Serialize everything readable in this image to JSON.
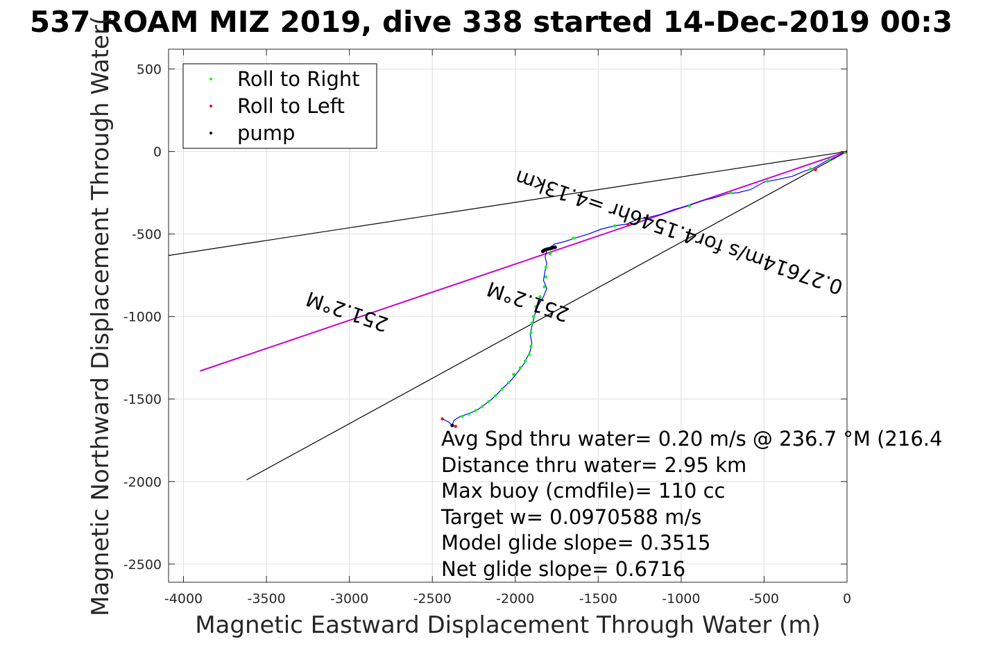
{
  "chart_data": {
    "type": "line",
    "title": "537 ROAM MIZ 2019, dive 338 started 14-Dec-2019 00:3",
    "xlabel": "Magnetic Eastward Displacement Through Water (m)",
    "ylabel": "Magnetic Northward Displacement Through Water(",
    "xlim": [
      -4090,
      0
    ],
    "ylim": [
      -2610,
      620
    ],
    "xticks": [
      -4000,
      -3500,
      -3000,
      -2500,
      -2000,
      -1500,
      -1000,
      -500,
      0
    ],
    "yticks": [
      500,
      0,
      -500,
      -1000,
      -1500,
      -2000,
      -2500
    ],
    "grid": true,
    "legend": {
      "placement": "top-left",
      "entries": [
        {
          "label": "Roll to Right",
          "color": "#00ff00"
        },
        {
          "label": "Roll to Left",
          "color": "#ff0000"
        },
        {
          "label": "pump",
          "color": "#000000"
        }
      ]
    },
    "reference_lines": [
      {
        "color": "#000000",
        "points": [
          [
            0,
            0
          ],
          [
            -4090,
            -630
          ]
        ]
      },
      {
        "color": "#000000",
        "points": [
          [
            0,
            0
          ],
          [
            -3620,
            -1990
          ]
        ]
      },
      {
        "color": "#cc00cc",
        "points": [
          [
            0,
            0
          ],
          [
            -3900,
            -1330
          ]
        ]
      }
    ],
    "track": {
      "color": "#0000ff",
      "points": [
        [
          0,
          0
        ],
        [
          -60,
          -30
        ],
        [
          -120,
          -55
        ],
        [
          -200,
          -100
        ],
        [
          -260,
          -120
        ],
        [
          -330,
          -150
        ],
        [
          -420,
          -170
        ],
        [
          -500,
          -185
        ],
        [
          -580,
          -230
        ],
        [
          -660,
          -250
        ],
        [
          -720,
          -255
        ],
        [
          -800,
          -280
        ],
        [
          -880,
          -300
        ],
        [
          -960,
          -330
        ],
        [
          -1040,
          -350
        ],
        [
          -1120,
          -380
        ],
        [
          -1200,
          -400
        ],
        [
          -1260,
          -410
        ],
        [
          -1330,
          -440
        ],
        [
          -1400,
          -450
        ],
        [
          -1480,
          -470
        ],
        [
          -1560,
          -500
        ],
        [
          -1640,
          -525
        ],
        [
          -1700,
          -545
        ],
        [
          -1760,
          -560
        ],
        [
          -1790,
          -580
        ],
        [
          -1810,
          -600
        ],
        [
          -1820,
          -640
        ],
        [
          -1810,
          -680
        ],
        [
          -1820,
          -720
        ],
        [
          -1830,
          -780
        ],
        [
          -1810,
          -830
        ],
        [
          -1830,
          -880
        ],
        [
          -1860,
          -930
        ],
        [
          -1880,
          -980
        ],
        [
          -1890,
          -1020
        ],
        [
          -1900,
          -1060
        ],
        [
          -1910,
          -1110
        ],
        [
          -1900,
          -1160
        ],
        [
          -1910,
          -1210
        ],
        [
          -1930,
          -1250
        ],
        [
          -1950,
          -1290
        ],
        [
          -1980,
          -1330
        ],
        [
          -2020,
          -1380
        ],
        [
          -2060,
          -1420
        ],
        [
          -2100,
          -1460
        ],
        [
          -2140,
          -1500
        ],
        [
          -2180,
          -1530
        ],
        [
          -2220,
          -1560
        ],
        [
          -2260,
          -1580
        ],
        [
          -2300,
          -1595
        ],
        [
          -2340,
          -1610
        ],
        [
          -2370,
          -1630
        ],
        [
          -2380,
          -1660
        ],
        [
          -2400,
          -1640
        ],
        [
          -2440,
          -1620
        ]
      ]
    },
    "roll_right_points": [
      [
        -10,
        -5
      ],
      [
        -110,
        -50
      ],
      [
        -220,
        -105
      ],
      [
        -480,
        -180
      ],
      [
        -700,
        -250
      ],
      [
        -950,
        -330
      ],
      [
        -1250,
        -410
      ],
      [
        -1400,
        -450
      ],
      [
        -1650,
        -525
      ],
      [
        -1790,
        -620
      ],
      [
        -1815,
        -700
      ],
      [
        -1815,
        -760
      ],
      [
        -1825,
        -820
      ],
      [
        -1850,
        -880
      ],
      [
        -1875,
        -940
      ],
      [
        -1890,
        -1000
      ],
      [
        -1900,
        -1040
      ],
      [
        -1905,
        -1100
      ],
      [
        -1905,
        -1180
      ],
      [
        -1915,
        -1230
      ],
      [
        -1940,
        -1270
      ],
      [
        -1970,
        -1310
      ],
      [
        -2010,
        -1350
      ],
      [
        -2040,
        -1400
      ],
      [
        -2080,
        -1440
      ],
      [
        -2120,
        -1480
      ],
      [
        -2160,
        -1515
      ],
      [
        -2200,
        -1545
      ],
      [
        -2240,
        -1570
      ],
      [
        -2280,
        -1590
      ],
      [
        -2320,
        -1605
      ]
    ],
    "roll_left_points": [
      [
        0,
        0
      ],
      [
        -190,
        -110
      ],
      [
        -1320,
        -445
      ],
      [
        -2360,
        -1665
      ],
      [
        -2440,
        -1620
      ]
    ],
    "pump_points": [
      [
        -1760,
        -580
      ],
      [
        -1770,
        -582
      ],
      [
        -1780,
        -585
      ],
      [
        -1790,
        -588
      ],
      [
        -1800,
        -590
      ],
      [
        -1810,
        -592
      ],
      [
        -1820,
        -596
      ],
      [
        -1828,
        -600
      ],
      [
        -1834,
        -605
      ],
      [
        -2380,
        -1660
      ]
    ]
  },
  "annotations": [
    {
      "text": "251.2°M",
      "x": -1910,
      "y": -870,
      "rotate": 198.9
    },
    {
      "text": "251.2°M",
      "x": -3000,
      "y": -930,
      "rotate": 198.9
    },
    {
      "text": "0.27614m/s for4.1546hr =4.13km",
      "x": -1000,
      "y": -450,
      "rotate": 198.9
    }
  ],
  "info_lines": [
    "Avg Spd thru water=  0.20 m/s @ 236.7 °M (216.4",
    "Distance thru water=  2.95 km",
    "Max buoy (cmdfile)= 110 cc",
    "Target w= 0.0970588 m/s",
    "Model glide slope= 0.3515",
    "Net glide slope= 0.6716"
  ]
}
